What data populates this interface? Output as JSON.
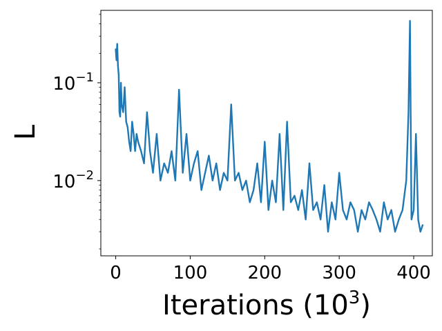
{
  "chart_data": {
    "type": "line",
    "title": "",
    "xlabel": "Iterations (10",
    "xlabel_sup": "3",
    "xlabel_close": ")",
    "ylabel": "L",
    "x_scale": "linear",
    "y_scale": "log",
    "xlim": [
      -20,
      425
    ],
    "ylim": [
      0.0017,
      0.55
    ],
    "grid": false,
    "legend": "none",
    "x_ticks": [
      0,
      100,
      200,
      300,
      400
    ],
    "x_tick_labels": [
      "0",
      "100",
      "200",
      "300",
      "400"
    ],
    "y_ticks": [
      0.1,
      0.01
    ],
    "y_tick_labels": [
      {
        "base": "10",
        "exp": "−1"
      },
      {
        "base": "10",
        "exp": "−2"
      }
    ],
    "series": [
      {
        "color": "#1f77b4",
        "x": [
          0,
          1,
          2,
          3,
          4,
          5,
          6,
          7,
          8,
          10,
          12,
          14,
          16,
          18,
          20,
          22,
          24,
          26,
          28,
          30,
          34,
          38,
          42,
          46,
          50,
          55,
          60,
          65,
          70,
          75,
          80,
          85,
          90,
          95,
          100,
          105,
          110,
          115,
          120,
          125,
          130,
          135,
          140,
          145,
          150,
          155,
          160,
          165,
          170,
          175,
          180,
          185,
          190,
          195,
          200,
          205,
          210,
          215,
          220,
          225,
          230,
          235,
          240,
          245,
          250,
          255,
          260,
          265,
          270,
          275,
          280,
          285,
          290,
          295,
          300,
          305,
          310,
          315,
          320,
          325,
          330,
          335,
          340,
          345,
          350,
          355,
          360,
          365,
          370,
          375,
          380,
          385,
          390,
          393,
          395,
          397,
          400,
          403,
          406,
          409,
          412
        ],
        "y": [
          0.22,
          0.17,
          0.25,
          0.15,
          0.12,
          0.05,
          0.045,
          0.1,
          0.06,
          0.05,
          0.09,
          0.04,
          0.035,
          0.025,
          0.02,
          0.04,
          0.03,
          0.02,
          0.03,
          0.025,
          0.02,
          0.015,
          0.05,
          0.02,
          0.012,
          0.03,
          0.01,
          0.015,
          0.012,
          0.02,
          0.01,
          0.085,
          0.012,
          0.03,
          0.01,
          0.015,
          0.02,
          0.008,
          0.012,
          0.018,
          0.01,
          0.015,
          0.008,
          0.012,
          0.01,
          0.06,
          0.01,
          0.012,
          0.008,
          0.01,
          0.006,
          0.008,
          0.015,
          0.006,
          0.025,
          0.005,
          0.01,
          0.006,
          0.03,
          0.005,
          0.04,
          0.006,
          0.007,
          0.005,
          0.008,
          0.004,
          0.015,
          0.005,
          0.006,
          0.004,
          0.009,
          0.003,
          0.006,
          0.004,
          0.012,
          0.005,
          0.004,
          0.006,
          0.005,
          0.003,
          0.005,
          0.004,
          0.006,
          0.005,
          0.004,
          0.003,
          0.006,
          0.004,
          0.005,
          0.003,
          0.004,
          0.005,
          0.01,
          0.05,
          0.43,
          0.004,
          0.005,
          0.03,
          0.004,
          0.003,
          0.0035
        ]
      }
    ]
  }
}
